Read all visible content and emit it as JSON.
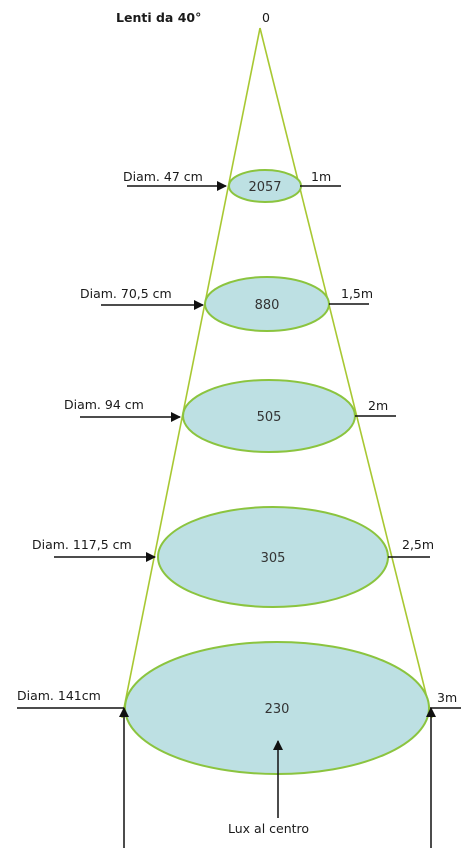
{
  "title": "Lenti da 40°",
  "apex_label": "0",
  "colors": {
    "cone": "#a8c832",
    "ellipse_fill": "#bde0e3",
    "ellipse_stroke": "#8bc43f",
    "arrow": "#111111"
  },
  "levels": [
    {
      "distance": "1m",
      "diameter": "Diam. 47 cm",
      "lux": "2057"
    },
    {
      "distance": "1,5m",
      "diameter": "Diam. 70,5 cm",
      "lux": "880"
    },
    {
      "distance": "2m",
      "diameter": "Diam. 94 cm",
      "lux": "505"
    },
    {
      "distance": "2,5m",
      "diameter": "Diam. 117,5 cm",
      "lux": "305"
    },
    {
      "distance": "3m",
      "diameter": "Diam. 141cm",
      "lux": "230"
    }
  ],
  "center_caption": "Lux al centro"
}
